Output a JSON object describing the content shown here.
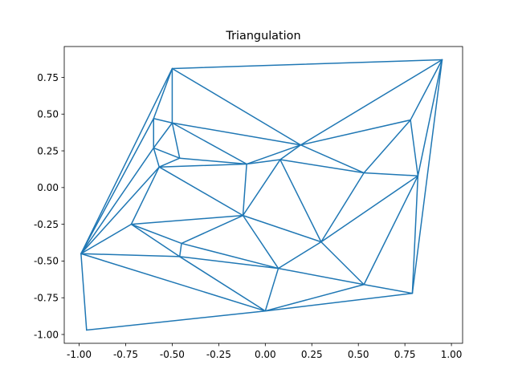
{
  "chart_data": {
    "type": "triangulation",
    "title": "Triangulation",
    "xlim": [
      -1.08,
      1.06
    ],
    "ylim": [
      -1.06,
      0.96
    ],
    "xticks": [
      "-1.00",
      "-0.75",
      "-0.50",
      "-0.25",
      "0.00",
      "0.25",
      "0.50",
      "0.75",
      "1.00"
    ],
    "yticks": [
      "-1.00",
      "-0.75",
      "-0.50",
      "-0.25",
      "0.00",
      "0.25",
      "0.50",
      "0.75"
    ],
    "line_color": "#1f77b4",
    "points": [
      [
        -0.99,
        -0.45
      ],
      [
        -0.96,
        -0.97
      ],
      [
        -0.5,
        0.81
      ],
      [
        0.95,
        0.87
      ],
      [
        -0.6,
        0.47
      ],
      [
        -0.5,
        0.44
      ],
      [
        -0.6,
        0.27
      ],
      [
        -0.57,
        0.14
      ],
      [
        -0.46,
        0.2
      ],
      [
        -0.1,
        0.16
      ],
      [
        0.08,
        0.19
      ],
      [
        0.19,
        0.29
      ],
      [
        0.53,
        0.1
      ],
      [
        0.78,
        0.46
      ],
      [
        0.82,
        0.08
      ],
      [
        -0.72,
        -0.25
      ],
      [
        -0.12,
        -0.19
      ],
      [
        -0.45,
        -0.38
      ],
      [
        -0.46,
        -0.47
      ],
      [
        0.3,
        -0.37
      ],
      [
        0.07,
        -0.55
      ],
      [
        0.53,
        -0.66
      ],
      [
        0.79,
        -0.72
      ],
      [
        0.0,
        -0.84
      ]
    ],
    "triangles": [
      [
        0,
        1,
        23
      ],
      [
        0,
        23,
        18
      ],
      [
        0,
        18,
        15
      ],
      [
        15,
        18,
        17
      ],
      [
        0,
        15,
        7
      ],
      [
        0,
        7,
        6
      ],
      [
        0,
        6,
        4
      ],
      [
        0,
        4,
        2
      ],
      [
        2,
        4,
        5
      ],
      [
        4,
        5,
        6
      ],
      [
        5,
        6,
        8
      ],
      [
        6,
        7,
        8
      ],
      [
        2,
        5,
        11
      ],
      [
        2,
        11,
        3
      ],
      [
        5,
        8,
        9
      ],
      [
        5,
        9,
        11
      ],
      [
        9,
        10,
        11
      ],
      [
        10,
        11,
        12
      ],
      [
        11,
        12,
        13
      ],
      [
        3,
        11,
        13
      ],
      [
        3,
        13,
        14
      ],
      [
        12,
        13,
        14
      ],
      [
        7,
        8,
        9
      ],
      [
        7,
        9,
        16
      ],
      [
        7,
        15,
        16
      ],
      [
        15,
        16,
        17
      ],
      [
        9,
        10,
        16
      ],
      [
        10,
        16,
        19
      ],
      [
        10,
        12,
        19
      ],
      [
        12,
        14,
        19
      ],
      [
        14,
        19,
        21
      ],
      [
        14,
        21,
        22
      ],
      [
        3,
        14,
        22
      ],
      [
        16,
        19,
        20
      ],
      [
        16,
        17,
        20
      ],
      [
        17,
        18,
        20
      ],
      [
        18,
        20,
        23
      ],
      [
        20,
        21,
        23
      ],
      [
        19,
        20,
        21
      ],
      [
        21,
        22,
        23
      ]
    ]
  }
}
